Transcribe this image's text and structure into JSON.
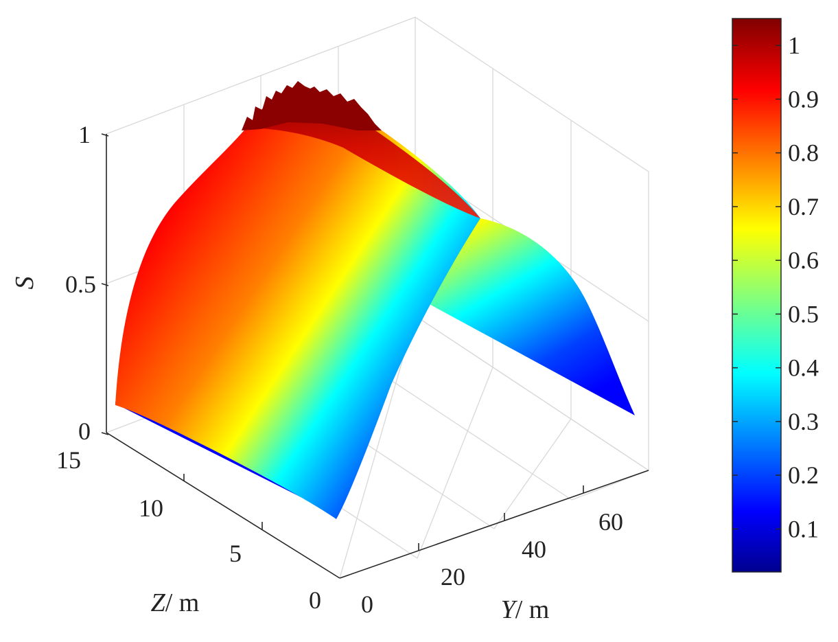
{
  "chart_data": {
    "type": "surface",
    "title": "",
    "xlabel": {
      "var": "Y",
      "unit": "/ m"
    },
    "ylabel": {
      "var": "Z",
      "unit": "/ m"
    },
    "zlabel": "S",
    "xlim": [
      0,
      72
    ],
    "ylim": [
      0,
      15
    ],
    "zlim": [
      0,
      1
    ],
    "x_ticks": [
      "0",
      "20",
      "40",
      "60"
    ],
    "y_ticks": [
      "0",
      "5",
      "10",
      "15"
    ],
    "z_ticks": [
      "0",
      "0.5",
      "1"
    ],
    "x_tick_values": [
      0,
      20,
      40,
      60
    ],
    "y_tick_values": [
      0,
      5,
      10,
      15
    ],
    "z_tick_values": [
      0,
      0.5,
      1
    ],
    "colormap": "jet",
    "colorbar": {
      "ticks": [
        "0.1",
        "0.2",
        "0.3",
        "0.4",
        "0.5",
        "0.6",
        "0.7",
        "0.8",
        "0.9",
        "1"
      ],
      "tick_values": [
        0.1,
        0.2,
        0.3,
        0.4,
        0.5,
        0.6,
        0.7,
        0.8,
        0.9,
        1.0
      ],
      "range": [
        0.02,
        1.05
      ],
      "placement": "right"
    },
    "surface_profile": {
      "description_values": "S as a function of Z (constant along Y)",
      "z": [
        0,
        2.5,
        5,
        7.5,
        10,
        12.5,
        15
      ],
      "s": [
        0.1,
        0.58,
        0.88,
        0.98,
        0.88,
        0.58,
        0.1
      ],
      "peak_s": 1.05
    },
    "grid": true
  }
}
